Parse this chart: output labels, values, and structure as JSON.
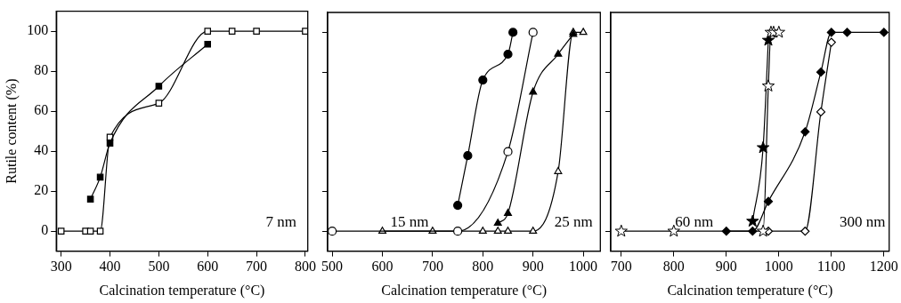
{
  "chart_data": [
    {
      "type": "line",
      "xlabel": "Calcination temperature (°C)",
      "ylabel": "Rutile content (%)",
      "xlim": [
        290,
        805
      ],
      "xticks": [
        300,
        400,
        500,
        600,
        700,
        800
      ],
      "ylim": [
        -10,
        110
      ],
      "yticks": [
        0,
        20,
        40,
        60,
        80,
        100
      ],
      "annotations": [
        "7 nm"
      ],
      "series": [
        {
          "color": "#000000",
          "marker": "square",
          "x": [
            360,
            380,
            400,
            500,
            600
          ],
          "values": [
            16,
            27,
            44,
            72.5,
            93.5
          ]
        },
        {
          "color": "#ffffff",
          "marker": "square",
          "x": [
            300,
            350,
            360,
            380,
            400,
            500,
            600,
            650,
            700,
            800
          ],
          "values": [
            0,
            0,
            0,
            0,
            47,
            64,
            100,
            100,
            100,
            100
          ]
        }
      ]
    },
    {
      "type": "line",
      "xlabel": "Calcination temperature (°C)",
      "xlim": [
        491,
        1034
      ],
      "xticks": [
        500,
        600,
        700,
        800,
        900,
        1000
      ],
      "ylim": [
        -10,
        110
      ],
      "yticks": [
        0,
        20,
        40,
        60,
        80,
        100
      ],
      "tick_labels": "x",
      "annotations": [
        "15 nm",
        "25 nm"
      ],
      "series": [
        {
          "color": "#000000",
          "marker": "circle",
          "x": [
            750,
            770,
            800,
            850,
            860
          ],
          "values": [
            13,
            38,
            76,
            89,
            100
          ]
        },
        {
          "color": "#ffffff",
          "marker": "circle",
          "x": [
            500,
            750,
            850,
            900
          ],
          "values": [
            0,
            0,
            40,
            100
          ]
        },
        {
          "color": "#000000",
          "marker": "triangle",
          "x": [
            830,
            850,
            900,
            950,
            980
          ],
          "values": [
            4,
            9,
            70,
            89,
            99
          ]
        },
        {
          "color": "#ffffff",
          "marker": "triangle",
          "x": [
            600,
            700,
            800,
            830,
            850,
            900,
            950,
            980,
            1000
          ],
          "values": [
            0,
            0,
            0,
            0,
            0,
            0,
            30,
            100,
            100
          ]
        }
      ]
    },
    {
      "type": "line",
      "xlabel": "Calcination temperature (°C)",
      "xlim": [
        680,
        1210
      ],
      "xticks": [
        700,
        800,
        900,
        1000,
        1100,
        1200
      ],
      "ylim": [
        -10,
        110
      ],
      "yticks": [
        0,
        20,
        40,
        60,
        80,
        100
      ],
      "tick_labels": "x",
      "annotations": [
        "60 nm",
        "300 nm"
      ],
      "series": [
        {
          "color": "#000000",
          "marker": "star",
          "x": [
            950,
            970,
            980
          ],
          "values": [
            5,
            42,
            96
          ]
        },
        {
          "color": "#ffffff",
          "marker": "star",
          "x": [
            700,
            800,
            970,
            980,
            985,
            990,
            1000
          ],
          "values": [
            0,
            0,
            0,
            73,
            100,
            100,
            100
          ]
        },
        {
          "color": "#000000",
          "marker": "diamond",
          "x": [
            900,
            950,
            980,
            1050,
            1080,
            1100,
            1130,
            1200
          ],
          "values": [
            0,
            0,
            15,
            50,
            80,
            100,
            100,
            100
          ]
        },
        {
          "color": "#ffffff",
          "marker": "diamond",
          "x": [
            980,
            1050,
            1080,
            1100
          ],
          "values": [
            0,
            0,
            60,
            95
          ]
        }
      ]
    }
  ]
}
